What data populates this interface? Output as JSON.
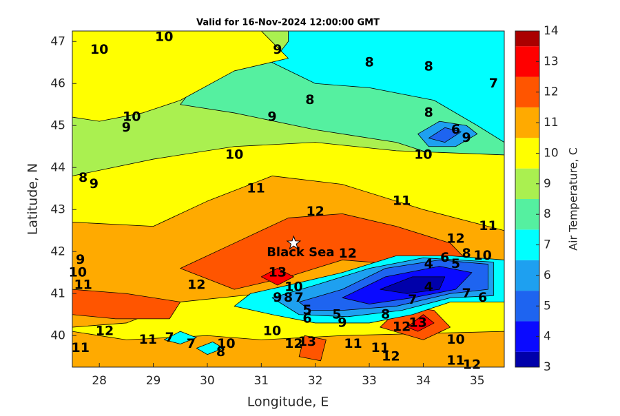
{
  "chart_data": {
    "type": "contour",
    "title": "Valid for 16-Nov-2024 12:00:00 GMT",
    "xlabel": "Longitude, E",
    "ylabel": "Latitude, N",
    "colorbar_label": "Air Temperature, C",
    "xlim": [
      27.5,
      35.5
    ],
    "ylim": [
      39.25,
      47.25
    ],
    "xticks": [
      28,
      29,
      30,
      31,
      32,
      33,
      34,
      35
    ],
    "yticks": [
      40,
      41,
      42,
      43,
      44,
      45,
      46,
      47
    ],
    "clim": [
      3,
      14
    ],
    "cticks": [
      3,
      4,
      5,
      6,
      7,
      8,
      9,
      10,
      11,
      12,
      13,
      14
    ],
    "levels": [
      3,
      3.5,
      4.5,
      5.5,
      6.5,
      7.5,
      8.5,
      9.5,
      10.5,
      11.5,
      12.5,
      13.5,
      14
    ],
    "colors": [
      "#0000aa",
      "#0a0aff",
      "#1e64f0",
      "#1ea0f0",
      "#00ffff",
      "#55f0a0",
      "#aaf050",
      "#ffff00",
      "#ffaa00",
      "#ff5500",
      "#ff0000",
      "#aa0000"
    ],
    "regions": [
      {
        "value": 9,
        "points": [
          [
            27.5,
            47.25
          ],
          [
            35.5,
            47.25
          ],
          [
            35.5,
            39.25
          ],
          [
            27.5,
            39.25
          ]
        ]
      },
      {
        "value": 8,
        "points": [
          [
            30.5,
            46.4
          ],
          [
            31.5,
            46.6
          ],
          [
            32.5,
            46.2
          ],
          [
            34,
            45.8
          ],
          [
            35.5,
            45.2
          ],
          [
            35.5,
            44.3
          ],
          [
            34.7,
            44.1
          ],
          [
            33.5,
            44.6
          ],
          [
            32,
            44.9
          ],
          [
            30.5,
            45.3
          ],
          [
            29.5,
            45.5
          ],
          [
            29.8,
            46.0
          ]
        ]
      },
      {
        "value": 7,
        "points": [
          [
            31.5,
            47.25
          ],
          [
            35.5,
            47.25
          ],
          [
            35.5,
            44.6
          ],
          [
            35,
            45.0
          ],
          [
            34.2,
            45.6
          ],
          [
            33,
            45.9
          ],
          [
            32,
            46.0
          ],
          [
            31.2,
            46.5
          ],
          [
            31.5,
            47.0
          ]
        ]
      },
      {
        "value": 10,
        "points": [
          [
            27.5,
            47.25
          ],
          [
            31,
            47.25
          ],
          [
            31.5,
            46.6
          ],
          [
            30.5,
            46.3
          ],
          [
            29.5,
            45.6
          ],
          [
            28.8,
            45.3
          ],
          [
            28,
            45.1
          ],
          [
            27.5,
            45.2
          ]
        ]
      },
      {
        "value": 10,
        "points": [
          [
            27.5,
            43.8
          ],
          [
            29,
            44.2
          ],
          [
            30.5,
            44.5
          ],
          [
            32,
            44.6
          ],
          [
            33.5,
            44.4
          ],
          [
            35.5,
            44.3
          ],
          [
            35.5,
            39.25
          ],
          [
            27.5,
            39.25
          ]
        ]
      },
      {
        "value": 11,
        "points": [
          [
            27.5,
            42.7
          ],
          [
            29,
            42.6
          ],
          [
            30,
            43.2
          ],
          [
            31.2,
            43.8
          ],
          [
            32.5,
            43.6
          ],
          [
            34,
            43.0
          ],
          [
            35.5,
            42.5
          ],
          [
            35.5,
            41.7
          ],
          [
            34.5,
            41.6
          ],
          [
            32.5,
            41.5
          ],
          [
            31,
            41.0
          ],
          [
            29.5,
            40.8
          ],
          [
            28.5,
            40.3
          ],
          [
            27.5,
            40.2
          ]
        ]
      },
      {
        "value": 11,
        "points": [
          [
            27.5,
            40.1
          ],
          [
            28.5,
            39.9
          ],
          [
            30,
            40.0
          ],
          [
            31,
            39.9
          ],
          [
            32.5,
            40.0
          ],
          [
            35.5,
            40.1
          ],
          [
            35.5,
            39.25
          ],
          [
            27.5,
            39.25
          ]
        ]
      },
      {
        "value": 12,
        "points": [
          [
            29.5,
            41.6
          ],
          [
            30.5,
            42.2
          ],
          [
            31.5,
            42.8
          ],
          [
            32.5,
            42.9
          ],
          [
            33.5,
            42.6
          ],
          [
            34.5,
            42.2
          ],
          [
            34.8,
            41.8
          ],
          [
            33.5,
            41.7
          ],
          [
            32.5,
            41.8
          ],
          [
            31.5,
            41.4
          ],
          [
            30.5,
            41.1
          ]
        ]
      },
      {
        "value": 12,
        "points": [
          [
            27.5,
            41.1
          ],
          [
            28.5,
            41.0
          ],
          [
            29.5,
            40.8
          ],
          [
            29.3,
            40.4
          ],
          [
            28.3,
            40.4
          ],
          [
            27.5,
            40.5
          ]
        ]
      },
      {
        "value": 12,
        "points": [
          [
            33.2,
            40.2
          ],
          [
            33.6,
            40.7
          ],
          [
            34.2,
            40.6
          ],
          [
            34.5,
            40.2
          ],
          [
            34,
            39.9
          ]
        ]
      },
      {
        "value": 12,
        "points": [
          [
            31.7,
            39.5
          ],
          [
            31.8,
            40.0
          ],
          [
            32.2,
            39.9
          ],
          [
            32.1,
            39.4
          ]
        ]
      },
      {
        "value": 13,
        "points": [
          [
            31,
            41.4
          ],
          [
            31.3,
            41.6
          ],
          [
            31.6,
            41.4
          ],
          [
            31.3,
            41.2
          ]
        ]
      },
      {
        "value": 13,
        "points": [
          [
            33.7,
            40.2
          ],
          [
            34,
            40.5
          ],
          [
            34.2,
            40.3
          ],
          [
            33.9,
            40.1
          ]
        ]
      },
      {
        "value": 7,
        "points": [
          [
            30.8,
            41.0
          ],
          [
            31.5,
            41.2
          ],
          [
            32.5,
            41.5
          ],
          [
            33.5,
            41.9
          ],
          [
            34.5,
            41.9
          ],
          [
            35.5,
            41.8
          ],
          [
            35.5,
            40.8
          ],
          [
            34.5,
            40.8
          ],
          [
            33.8,
            40.5
          ],
          [
            33,
            40.3
          ],
          [
            32,
            40.3
          ],
          [
            31.2,
            40.5
          ],
          [
            30.5,
            40.7
          ]
        ]
      },
      {
        "value": 6,
        "points": [
          [
            31.2,
            40.9
          ],
          [
            32,
            41.2
          ],
          [
            33,
            41.6
          ],
          [
            34,
            41.85
          ],
          [
            35.3,
            41.75
          ],
          [
            35.3,
            40.95
          ],
          [
            34.5,
            40.9
          ],
          [
            33.6,
            40.6
          ],
          [
            32.6,
            40.45
          ],
          [
            31.7,
            40.5
          ]
        ]
      },
      {
        "value": 5,
        "points": [
          [
            31.7,
            40.8
          ],
          [
            32.5,
            41.1
          ],
          [
            33.3,
            41.6
          ],
          [
            34.3,
            41.8
          ],
          [
            35.2,
            41.7
          ],
          [
            35.2,
            41.1
          ],
          [
            34.5,
            41.0
          ],
          [
            33.5,
            40.7
          ],
          [
            32.5,
            40.6
          ],
          [
            31.9,
            40.6
          ]
        ]
      },
      {
        "value": 4,
        "points": [
          [
            32.5,
            40.9
          ],
          [
            33.3,
            41.4
          ],
          [
            34.3,
            41.65
          ],
          [
            34.9,
            41.5
          ],
          [
            34.6,
            41.1
          ],
          [
            33.8,
            40.9
          ],
          [
            33,
            40.75
          ]
        ]
      },
      {
        "value": 3,
        "points": [
          [
            33.2,
            41.1
          ],
          [
            33.8,
            41.4
          ],
          [
            34.4,
            41.4
          ],
          [
            34.3,
            41.1
          ],
          [
            33.7,
            41.0
          ]
        ]
      },
      {
        "value": 6,
        "points": [
          [
            33.9,
            44.8
          ],
          [
            34.3,
            45.1
          ],
          [
            34.8,
            45.0
          ],
          [
            35,
            44.8
          ],
          [
            34.6,
            44.5
          ],
          [
            34.1,
            44.5
          ]
        ]
      },
      {
        "value": 5,
        "points": [
          [
            34.1,
            44.7
          ],
          [
            34.4,
            44.95
          ],
          [
            34.7,
            44.85
          ],
          [
            34.4,
            44.6
          ]
        ]
      },
      {
        "value": 7,
        "points": [
          [
            29.2,
            39.9
          ],
          [
            29.5,
            40.1
          ],
          [
            29.8,
            39.95
          ],
          [
            29.5,
            39.8
          ]
        ]
      },
      {
        "value": 7,
        "points": [
          [
            29.8,
            39.7
          ],
          [
            30.1,
            39.85
          ],
          [
            30.3,
            39.7
          ],
          [
            30.0,
            39.55
          ]
        ]
      }
    ],
    "contour_labels": [
      {
        "value": 10,
        "lon": 29.2,
        "lat": 47.1
      },
      {
        "value": 10,
        "lon": 28.0,
        "lat": 46.8
      },
      {
        "value": 9,
        "lon": 31.3,
        "lat": 46.8
      },
      {
        "value": 8,
        "lon": 33.0,
        "lat": 46.5
      },
      {
        "value": 8,
        "lon": 34.1,
        "lat": 46.4
      },
      {
        "value": 7,
        "lon": 35.3,
        "lat": 46.0
      },
      {
        "value": 8,
        "lon": 31.9,
        "lat": 45.6
      },
      {
        "value": 9,
        "lon": 31.2,
        "lat": 45.2
      },
      {
        "value": 8,
        "lon": 34.1,
        "lat": 45.3
      },
      {
        "value": 10,
        "lon": 28.6,
        "lat": 45.2
      },
      {
        "value": 9,
        "lon": 28.5,
        "lat": 44.95
      },
      {
        "value": 6,
        "lon": 34.6,
        "lat": 44.9
      },
      {
        "value": 9,
        "lon": 34.8,
        "lat": 44.7
      },
      {
        "value": 10,
        "lon": 34.0,
        "lat": 44.3
      },
      {
        "value": 10,
        "lon": 30.5,
        "lat": 44.3
      },
      {
        "value": 11,
        "lon": 30.9,
        "lat": 43.5
      },
      {
        "value": 11,
        "lon": 33.6,
        "lat": 43.2
      },
      {
        "value": 8,
        "lon": 27.7,
        "lat": 43.75
      },
      {
        "value": 9,
        "lon": 27.9,
        "lat": 43.6
      },
      {
        "value": 12,
        "lon": 32.0,
        "lat": 42.95
      },
      {
        "value": 11,
        "lon": 35.2,
        "lat": 42.6
      },
      {
        "value": 12,
        "lon": 34.6,
        "lat": 42.3
      },
      {
        "value": 12,
        "lon": 32.6,
        "lat": 41.95
      },
      {
        "value": 8,
        "lon": 34.8,
        "lat": 41.95
      },
      {
        "value": 10,
        "lon": 35.1,
        "lat": 41.9
      },
      {
        "value": 9,
        "lon": 27.65,
        "lat": 41.8
      },
      {
        "value": 10,
        "lon": 27.6,
        "lat": 41.5
      },
      {
        "value": 11,
        "lon": 27.7,
        "lat": 41.2
      },
      {
        "value": 6,
        "lon": 34.4,
        "lat": 41.85
      },
      {
        "value": 5,
        "lon": 34.6,
        "lat": 41.7
      },
      {
        "value": 4,
        "lon": 34.1,
        "lat": 41.7
      },
      {
        "value": 4,
        "lon": 34.1,
        "lat": 41.15
      },
      {
        "value": 13,
        "lon": 31.3,
        "lat": 41.5
      },
      {
        "value": 12,
        "lon": 29.8,
        "lat": 41.2
      },
      {
        "value": 10,
        "lon": 31.6,
        "lat": 41.15
      },
      {
        "value": 9,
        "lon": 31.3,
        "lat": 40.9
      },
      {
        "value": 8,
        "lon": 31.5,
        "lat": 40.9
      },
      {
        "value": 7,
        "lon": 31.7,
        "lat": 40.9
      },
      {
        "value": 5,
        "lon": 31.85,
        "lat": 40.6
      },
      {
        "value": 6,
        "lon": 31.85,
        "lat": 40.4
      },
      {
        "value": 5,
        "lon": 32.4,
        "lat": 40.5
      },
      {
        "value": 9,
        "lon": 32.5,
        "lat": 40.3
      },
      {
        "value": 8,
        "lon": 33.3,
        "lat": 40.5
      },
      {
        "value": 7,
        "lon": 33.8,
        "lat": 40.85
      },
      {
        "value": 6,
        "lon": 35.1,
        "lat": 40.9
      },
      {
        "value": 7,
        "lon": 34.8,
        "lat": 41.0
      },
      {
        "value": 11,
        "lon": 28.9,
        "lat": 39.9
      },
      {
        "value": 12,
        "lon": 28.1,
        "lat": 40.1
      },
      {
        "value": 11,
        "lon": 27.65,
        "lat": 39.7
      },
      {
        "value": 7,
        "lon": 29.3,
        "lat": 39.95
      },
      {
        "value": 7,
        "lon": 29.7,
        "lat": 39.8
      },
      {
        "value": 10,
        "lon": 30.35,
        "lat": 39.8
      },
      {
        "value": 8,
        "lon": 30.25,
        "lat": 39.6
      },
      {
        "value": 10,
        "lon": 31.2,
        "lat": 40.1
      },
      {
        "value": 12,
        "lon": 31.6,
        "lat": 39.8
      },
      {
        "value": 13,
        "lon": 31.85,
        "lat": 39.85
      },
      {
        "value": 11,
        "lon": 32.7,
        "lat": 39.8
      },
      {
        "value": 11,
        "lon": 33.2,
        "lat": 39.7
      },
      {
        "value": 12,
        "lon": 33.4,
        "lat": 39.5
      },
      {
        "value": 12,
        "lon": 33.6,
        "lat": 40.2
      },
      {
        "value": 13,
        "lon": 33.9,
        "lat": 40.3
      },
      {
        "value": 10,
        "lon": 34.6,
        "lat": 39.9
      },
      {
        "value": 11,
        "lon": 34.6,
        "lat": 39.4
      },
      {
        "value": 12,
        "lon": 34.9,
        "lat": 39.3
      }
    ],
    "annotations": [
      {
        "text": "Black Sea",
        "lon": 31.6,
        "lat": 42.2
      }
    ]
  }
}
